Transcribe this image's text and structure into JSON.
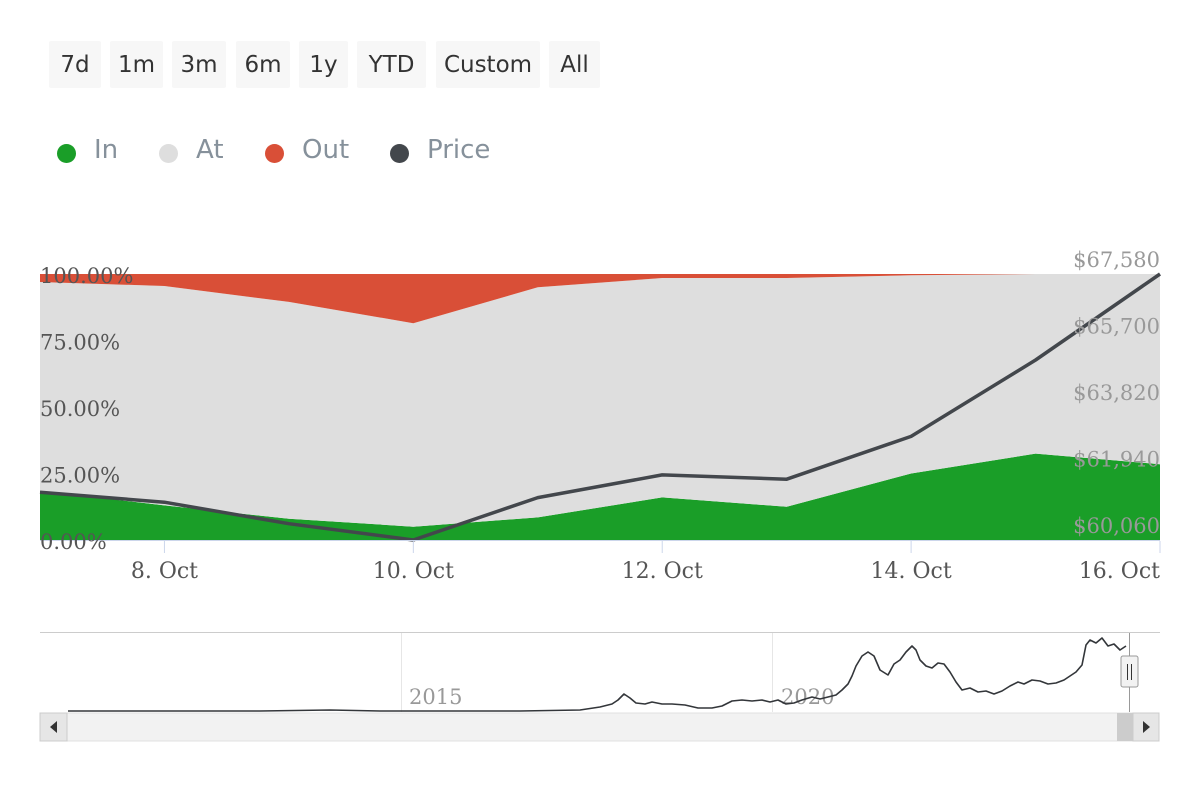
{
  "range_selector": {
    "buttons": [
      "7d",
      "1m",
      "3m",
      "6m",
      "1y",
      "YTD",
      "Custom",
      "All"
    ]
  },
  "legend": {
    "items": [
      {
        "label": "In",
        "color": "#1a9e28"
      },
      {
        "label": "At",
        "color": "#dedede"
      },
      {
        "label": "Out",
        "color": "#d94f37"
      },
      {
        "label": "Price",
        "color": "#43474c"
      }
    ]
  },
  "chart_data": {
    "type": "area",
    "stacking": "percent",
    "x": [
      "7. Oct",
      "8. Oct",
      "9. Oct",
      "10. Oct",
      "11. Oct",
      "12. Oct",
      "13. Oct",
      "14. Oct",
      "15. Oct",
      "16. Oct"
    ],
    "x_tick_labels": [
      "8. Oct",
      "10. Oct",
      "12. Oct",
      "14. Oct",
      "16. Oct"
    ],
    "series": [
      {
        "name": "In",
        "axis": "left",
        "values": [
          18.5,
          13,
          8,
          5,
          8.5,
          16,
          12.5,
          25,
          32.5,
          28.5
        ]
      },
      {
        "name": "At",
        "axis": "left",
        "values": [
          78.5,
          82.5,
          81.5,
          76.5,
          86.5,
          82.5,
          86,
          74.5,
          67.5,
          71.5
        ]
      },
      {
        "name": "Out",
        "axis": "left",
        "values": [
          3,
          4.5,
          10.5,
          18.5,
          5,
          1.5,
          1.5,
          0.5,
          0,
          0
        ]
      },
      {
        "name": "Price",
        "axis": "right",
        "values": [
          61410,
          61130,
          60520,
          60060,
          61260,
          61900,
          61780,
          62990,
          65150,
          67580
        ]
      }
    ],
    "y_left": {
      "ticks": [
        "0.00%",
        "25.00%",
        "50.00%",
        "75.00%",
        "100.00%"
      ],
      "range": [
        0,
        100
      ]
    },
    "y_right": {
      "ticks": [
        "$60,060",
        "$61,940",
        "$63,820",
        "$65,700",
        "$67,580"
      ],
      "range": [
        60060,
        67580
      ]
    },
    "legend_position": "top-left",
    "grid": false
  },
  "navigator": {
    "x_labels": [
      "2015",
      "2020"
    ]
  }
}
